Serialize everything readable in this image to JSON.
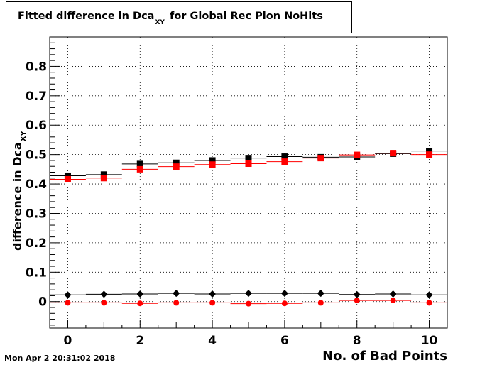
{
  "title": {
    "main": "Fitted difference in Dca",
    "sub": "XY",
    "rest": "for Global Rec Pion NoHits"
  },
  "datestamp": "Mon Apr  2 20:31:02 2018",
  "chart_data": {
    "type": "scatter",
    "xlabel": "No. of Bad Points",
    "ylabel": "difference in Dca",
    "ylabel_sub": "XY",
    "xlim": [
      -0.5,
      10.5
    ],
    "ylim": [
      -0.09,
      0.9
    ],
    "xticks": [
      0,
      2,
      4,
      6,
      8,
      10
    ],
    "yticks": [
      0,
      0.1,
      0.2,
      0.3,
      0.4,
      0.5,
      0.6,
      0.7,
      0.8
    ],
    "ytick_labels": [
      "0",
      "0.1",
      "0.2",
      "0.3",
      "0.4",
      "0.5",
      "0.6",
      "0.7",
      "0.8"
    ],
    "grid": true,
    "x": [
      0,
      1,
      2,
      3,
      4,
      5,
      6,
      7,
      8,
      9,
      10
    ],
    "series": [
      {
        "marker": "square",
        "color": "#000000",
        "values": [
          0.428,
          0.432,
          0.468,
          0.472,
          0.48,
          0.488,
          0.493,
          0.491,
          0.492,
          0.503,
          0.512
        ]
      },
      {
        "marker": "square",
        "color": "#ff0000",
        "values": [
          0.416,
          0.42,
          0.45,
          0.459,
          0.466,
          0.469,
          0.476,
          0.488,
          0.499,
          0.505,
          0.5
        ]
      },
      {
        "marker": "diamond",
        "color": "#000000",
        "values": [
          0.023,
          0.025,
          0.026,
          0.028,
          0.026,
          0.028,
          0.028,
          0.028,
          0.024,
          0.026,
          0.023
        ]
      },
      {
        "marker": "circle",
        "color": "#ff0000",
        "values": [
          -0.004,
          -0.004,
          -0.006,
          -0.004,
          -0.004,
          -0.007,
          -0.006,
          -0.004,
          0.004,
          0.004,
          -0.004
        ]
      }
    ]
  }
}
